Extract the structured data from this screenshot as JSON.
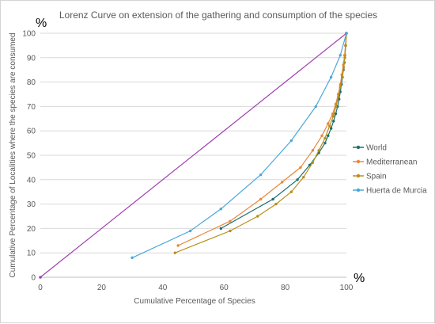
{
  "chart_data": {
    "type": "line",
    "title": "Lorenz Curve on extension of the gathering and consumption of the species",
    "xlabel": "Cumulative Percentage of Species",
    "ylabel": "Cumulative Percentage of Localities where the species are consumed",
    "x_unit": "%",
    "y_unit": "%",
    "xlim": [
      0,
      100
    ],
    "ylim": [
      0,
      100
    ],
    "x_ticks": [
      "0",
      "20",
      "40",
      "60",
      "80",
      "100"
    ],
    "y_ticks": [
      "0",
      "10",
      "20",
      "30",
      "40",
      "50",
      "60",
      "70",
      "80",
      "90",
      "100"
    ],
    "grid": "horizontal",
    "legend": "right",
    "equality_line": {
      "x": [
        0,
        100
      ],
      "y": [
        0,
        100
      ],
      "color": "#a040b0"
    },
    "series": [
      {
        "name": "World",
        "color": "#1f6f6f",
        "x": [
          59,
          76,
          84,
          88,
          91,
          93,
          94,
          95,
          95.8,
          96.5,
          97.1,
          97.6,
          98,
          98.4,
          98.7,
          99,
          99.3,
          99.5,
          99.7,
          100
        ],
        "y": [
          20,
          32,
          40,
          46,
          51,
          55,
          58,
          61,
          64,
          67,
          70,
          73,
          76,
          79,
          82,
          85,
          88,
          91,
          95,
          100
        ]
      },
      {
        "name": "Mediterranean",
        "color": "#e8883a",
        "x": [
          45,
          62,
          72,
          79,
          85,
          89,
          92,
          94,
          95.5,
          96.5,
          97.3,
          98,
          98.5,
          99,
          99.4,
          99.7,
          100
        ],
        "y": [
          13,
          23,
          32,
          39,
          45,
          52,
          58,
          63,
          67,
          71,
          75,
          79,
          83,
          87,
          91,
          95,
          100
        ]
      },
      {
        "name": "Spain",
        "color": "#b8901a",
        "x": [
          44,
          62,
          71,
          77,
          82,
          86,
          89,
          91,
          93,
          94.5,
          95.7,
          96.6,
          97.4,
          98,
          98.6,
          99.1,
          99.5,
          99.8,
          100
        ],
        "y": [
          10,
          19,
          25,
          30,
          35,
          41,
          47,
          52,
          57,
          62,
          66,
          70,
          74,
          78,
          82,
          86,
          90,
          95,
          100
        ]
      },
      {
        "name": "Huerta de Murcia",
        "color": "#4aa8d8",
        "x": [
          30,
          49,
          59,
          72,
          82,
          90,
          95,
          98,
          100
        ],
        "y": [
          8,
          19,
          28,
          42,
          56,
          70,
          82,
          91,
          100
        ]
      }
    ]
  }
}
